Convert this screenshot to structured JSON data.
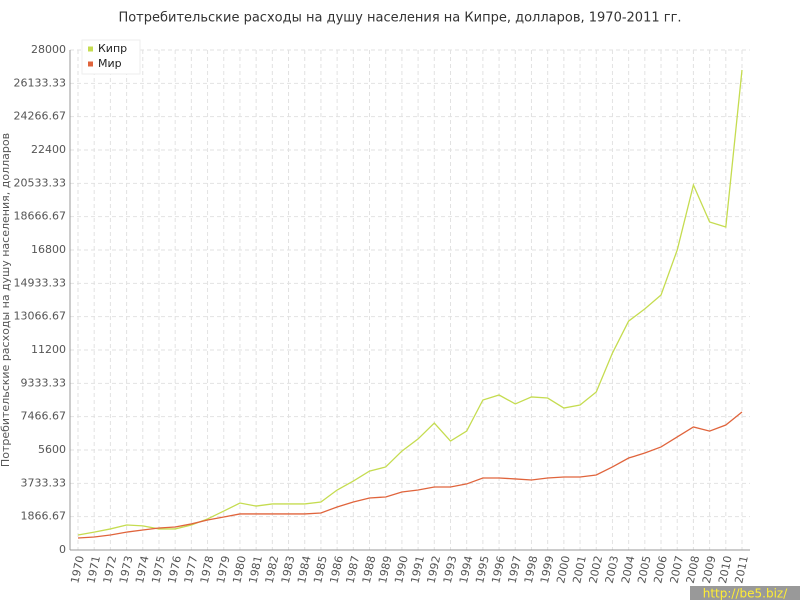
{
  "chart_data": {
    "type": "line",
    "title": "Потребительские расходы на душу населения на Кипре, долларов, 1970-2011 гг.",
    "y_label": "Потребительские расходы на душу населения, долларов",
    "watermark": "http://be5.biz/",
    "legend": "top-left",
    "grid": true,
    "categories": [
      "1970",
      "1971",
      "1972",
      "1973",
      "1974",
      "1975",
      "1976",
      "1977",
      "1978",
      "1979",
      "1980",
      "1981",
      "1982",
      "1983",
      "1984",
      "1985",
      "1986",
      "1987",
      "1988",
      "1989",
      "1990",
      "1991",
      "1992",
      "1993",
      "1994",
      "1995",
      "1996",
      "1997",
      "1998",
      "1999",
      "2000",
      "2001",
      "2002",
      "2003",
      "2004",
      "2005",
      "2006",
      "2007",
      "2008",
      "2009",
      "2010",
      "2011"
    ],
    "series": [
      {
        "name": "Кипр",
        "color": "#c5dc50",
        "values": [
          840,
          1000,
          1180,
          1400,
          1350,
          1180,
          1180,
          1400,
          1740,
          2180,
          2630,
          2460,
          2580,
          2580,
          2580,
          2690,
          3360,
          3860,
          4420,
          4650,
          5540,
          6220,
          7110,
          6100,
          6660,
          8400,
          8680,
          8180,
          8570,
          8510,
          7950,
          8120,
          8850,
          11030,
          12820,
          13500,
          14280,
          16800,
          20440,
          18370,
          18090,
          26880
        ]
      },
      {
        "name": "Мир",
        "color": "#e0643c",
        "values": [
          670,
          730,
          840,
          1000,
          1120,
          1230,
          1290,
          1460,
          1680,
          1850,
          2020,
          2020,
          2020,
          2020,
          2020,
          2070,
          2410,
          2690,
          2910,
          2970,
          3250,
          3360,
          3530,
          3530,
          3700,
          4030,
          4030,
          3980,
          3920,
          4030,
          4090,
          4090,
          4200,
          4650,
          5150,
          5430,
          5770,
          6330,
          6890,
          6660,
          7000,
          7730
        ]
      }
    ],
    "ylim": [
      0,
      28000
    ],
    "yticks": [
      0,
      1866.67,
      3733.33,
      5600,
      7466.67,
      9333.33,
      11200,
      13066.67,
      14933.33,
      16800,
      18666.67,
      20533.33,
      22400,
      24266.67,
      26133.33,
      28000
    ]
  }
}
